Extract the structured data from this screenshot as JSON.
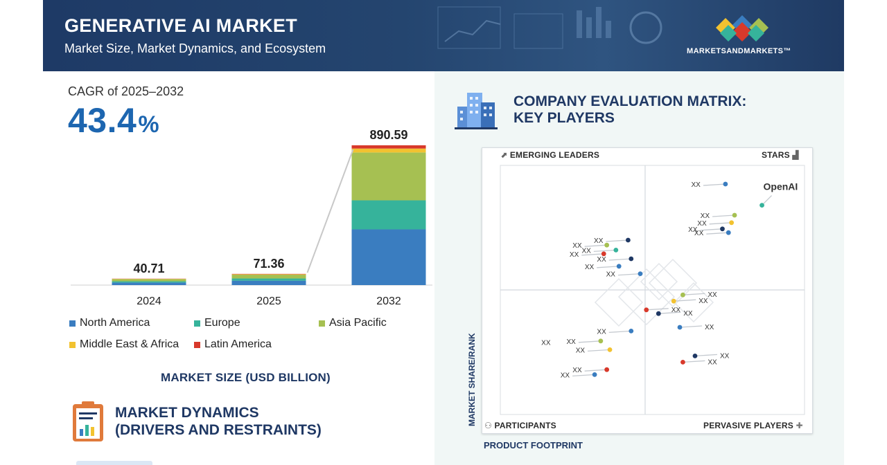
{
  "header": {
    "title": "GENERATIVE AI MARKET",
    "subtitle": "Market Size, Market Dynamics, and Ecosystem",
    "logo_text": "MARKETSANDMARKETS™",
    "background_color": "#1e3a66"
  },
  "cagr": {
    "label": "CAGR of 2025–2032",
    "value": "43.4",
    "unit": "%"
  },
  "chart_data": [
    {
      "type": "bar",
      "stacked": true,
      "categories": [
        "2024",
        "2025",
        "2032"
      ],
      "totals": [
        40.71,
        71.36,
        890.59
      ],
      "total_labels": [
        "40.71",
        "71.36",
        "890.59"
      ],
      "series": [
        {
          "name": "North America",
          "color": "#3a7dc0",
          "values": [
            16,
            28,
            355
          ]
        },
        {
          "name": "Europe",
          "color": "#36b39b",
          "values": [
            8,
            14,
            185
          ]
        },
        {
          "name": "Asia Pacific",
          "color": "#a6c052",
          "values": [
            14,
            24,
            305
          ]
        },
        {
          "name": "Middle East & Africa",
          "color": "#f2c230",
          "values": [
            1.5,
            3,
            25
          ]
        },
        {
          "name": "Latin America",
          "color": "#d8392b",
          "values": [
            1.21,
            2.36,
            20.59
          ]
        }
      ],
      "xlabel": "MARKET SIZE (USD BILLION)",
      "ylim": [
        0,
        1000
      ]
    },
    {
      "type": "scatter",
      "title": "COMPANY EVALUATION MATRIX: KEY PLAYERS",
      "xlabel": "PRODUCT FOOTPRINT",
      "ylabel": "MARKET SHARE/RANK",
      "quadrants": {
        "top_left": "EMERGING LEADERS",
        "top_right": "STARS",
        "bottom_left": "PARTICIPANTS",
        "bottom_right": "PERVASIVE PLAYERS"
      },
      "xlim": [
        0,
        100
      ],
      "ylim": [
        0,
        100
      ],
      "points": [
        {
          "label": "XX",
          "x": 74,
          "y": 92.5,
          "color": "#3a7dc0",
          "label_side": "left"
        },
        {
          "label": "OpenAI",
          "x": 86,
          "y": 84,
          "color": "#36b39b",
          "label_side": "above-right"
        },
        {
          "label": "XX",
          "x": 77,
          "y": 80,
          "color": "#a6c052",
          "label_side": "left"
        },
        {
          "label": "XX",
          "x": 76,
          "y": 77,
          "color": "#f2c230",
          "label_side": "left"
        },
        {
          "label": "XX",
          "x": 73,
          "y": 74.5,
          "color": "#1f3864",
          "label_side": "left"
        },
        {
          "label": "XX",
          "x": 75,
          "y": 73,
          "color": "#3a7dc0",
          "label_side": "left"
        },
        {
          "label": "XX",
          "x": 42,
          "y": 70,
          "color": "#1f3864",
          "label_side": "left"
        },
        {
          "label": "XX",
          "x": 35,
          "y": 68,
          "color": "#a6c052",
          "label_side": "left"
        },
        {
          "label": "XX",
          "x": 38,
          "y": 66,
          "color": "#36b39b",
          "label_side": "left"
        },
        {
          "label": "XX",
          "x": 34,
          "y": 64.5,
          "color": "#d8392b",
          "label_side": "left"
        },
        {
          "label": "XX",
          "x": 43,
          "y": 62.5,
          "color": "#1f3864",
          "label_side": "left"
        },
        {
          "label": "XX",
          "x": 39,
          "y": 59.5,
          "color": "#3a7dc0",
          "label_side": "left"
        },
        {
          "label": "XX",
          "x": 46,
          "y": 56.5,
          "color": "#3a7dc0",
          "label_side": "left"
        },
        {
          "label": "XX",
          "x": 60,
          "y": 48,
          "color": "#a6c052",
          "label_side": "right"
        },
        {
          "label": "XX",
          "x": 57,
          "y": 45.5,
          "color": "#f2c230",
          "label_side": "right"
        },
        {
          "label": "XX",
          "x": 48,
          "y": 42,
          "color": "#d8392b",
          "label_side": "right"
        },
        {
          "label": "XX",
          "x": 52,
          "y": 40.5,
          "color": "#1f3864",
          "label_side": "right"
        },
        {
          "label": "XX",
          "x": 59,
          "y": 35,
          "color": "#3a7dc0",
          "label_side": "right"
        },
        {
          "label": "XX",
          "x": 43,
          "y": 33.5,
          "color": "#3a7dc0",
          "label_side": "left"
        },
        {
          "label": "XX",
          "x": 33,
          "y": 29.5,
          "color": "#a6c052",
          "label_side": "left"
        },
        {
          "label": "XX",
          "x": 36,
          "y": 26,
          "color": "#f2c230",
          "label_side": "left"
        },
        {
          "label": "XX",
          "x": 64,
          "y": 23.5,
          "color": "#1f3864",
          "label_side": "right"
        },
        {
          "label": "XX",
          "x": 60,
          "y": 21,
          "color": "#d8392b",
          "label_side": "right"
        },
        {
          "label": "XX",
          "x": 35,
          "y": 18,
          "color": "#d8392b",
          "label_side": "left"
        },
        {
          "label": "XX",
          "x": 31,
          "y": 16,
          "color": "#3a7dc0",
          "label_side": "left"
        },
        {
          "label": "XX",
          "x": 15,
          "y": 29,
          "color": "#a6c052",
          "label_side": "left-only"
        }
      ]
    }
  ],
  "market_dynamics": {
    "title_line1": "MARKET DYNAMICS",
    "title_line2": "(DRIVERS AND RESTRAINTS)"
  },
  "matrix": {
    "title_line1": "COMPANY EVALUATION MATRIX:",
    "title_line2": "KEY PLAYERS"
  }
}
